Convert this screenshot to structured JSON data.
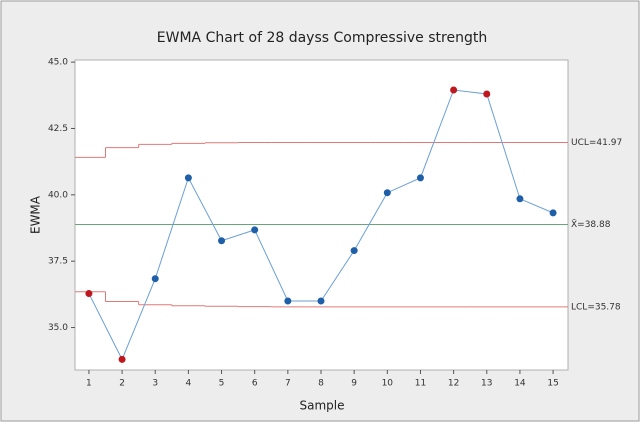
{
  "chart_data": {
    "type": "line",
    "title": "EWMA Chart of 28 dayss Compressive strength",
    "xlabel": "Sample",
    "ylabel": "EWMA",
    "x": [
      1,
      2,
      3,
      4,
      5,
      6,
      7,
      8,
      9,
      10,
      11,
      12,
      13,
      14,
      15
    ],
    "series": [
      {
        "color": "#6b9fd6",
        "values": [
          36.28,
          33.8,
          36.84,
          40.64,
          38.27,
          38.68,
          36.0,
          36.0,
          37.9,
          40.08,
          40.64,
          43.95,
          43.8,
          39.85,
          39.32
        ],
        "marker_colors": [
          "#c0161e",
          "#c0161e",
          "#1f5fa8",
          "#1f5fa8",
          "#1f5fa8",
          "#1f5fa8",
          "#1f5fa8",
          "#1f5fa8",
          "#1f5fa8",
          "#1f5fa8",
          "#1f5fa8",
          "#c0161e",
          "#c0161e",
          "#1f5fa8",
          "#1f5fa8"
        ]
      }
    ],
    "ucl": {
      "label": "UCL=41.97",
      "color": "#e07a7a",
      "values": [
        41.41,
        41.78,
        41.9,
        41.94,
        41.96,
        41.97,
        41.97,
        41.97,
        41.97,
        41.97,
        41.97,
        41.97,
        41.97,
        41.97,
        41.97
      ]
    },
    "center": {
      "label": "X̄=38.88",
      "color": "#6aa57a",
      "value": 38.88
    },
    "lcl": {
      "label": "LCL=35.78",
      "color": "#e07a7a",
      "values": [
        36.35,
        35.98,
        35.86,
        35.82,
        35.8,
        35.79,
        35.78,
        35.78,
        35.78,
        35.78,
        35.78,
        35.78,
        35.78,
        35.78,
        35.78
      ]
    },
    "xlim": [
      0.58,
      15.45
    ],
    "ylim": [
      33.4,
      45.08
    ],
    "xticks": [
      1,
      2,
      3,
      4,
      5,
      6,
      7,
      8,
      9,
      10,
      11,
      12,
      13,
      14,
      15
    ],
    "yticks": [
      {
        "value": 35,
        "label": "35.0"
      },
      37.5,
      {
        "value": 40,
        "label": "40.0"
      },
      42.5,
      {
        "value": 45,
        "label": "45.0"
      }
    ]
  }
}
